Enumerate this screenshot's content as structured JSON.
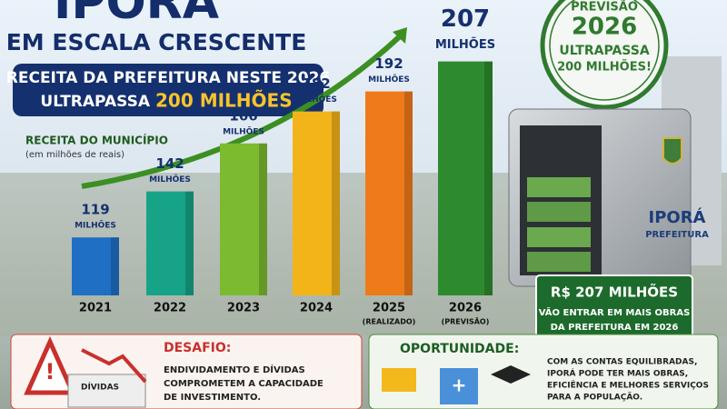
{
  "header": {
    "title": "IPORÁ",
    "subtitle": "EM ESCALA CRESCENTE",
    "banner_line1": "RECEITA DA PREFEITURA NESTE 2026",
    "banner_line2": "ULTRAPASSA",
    "banner_highlight": "200 MILHÕES"
  },
  "stamp": {
    "line1": "PREVISÃO",
    "year": "2026",
    "line2": "ULTRAPASSA",
    "line3": "200 MILHÕES!"
  },
  "safe": {
    "name": "IPORÁ",
    "label": "PREFEITURA"
  },
  "sign": {
    "title": "R$ 207 MILHÕES",
    "lines": [
      "VÃO ENTRAR EM MAIS OBRAS",
      "DA PREFEITURA EM 2026"
    ]
  },
  "chart_data": {
    "type": "bar",
    "title": "RECEITA DO MUNICÍPIO",
    "subtitle": "(em milhões de reais)",
    "categories": [
      "2021",
      "2022",
      "2023",
      "2024",
      "2025",
      "2026"
    ],
    "category_notes": [
      null,
      null,
      null,
      null,
      "(REALIZADO)",
      "(PREVISÃO)"
    ],
    "values": [
      119,
      142,
      166,
      182,
      192,
      207
    ],
    "value_unit": "MILHÕES",
    "colors": [
      "#1f6fc4",
      "#17a388",
      "#7cba2f",
      "#f3b41a",
      "#ef7a1a",
      "#2e8a2e"
    ],
    "ylim": [
      90,
      215
    ]
  },
  "challenge": {
    "title": "DESAFIO:",
    "lines": [
      "ENDIVIDAMENTO E DÍVIDAS",
      "COMPROMETEM A CAPACIDADE",
      "DE INVESTIMENTO."
    ],
    "icon_label": "DÍVIDAS"
  },
  "opportunity": {
    "title": "OPORTUNIDADE:",
    "lines": [
      "COM AS CONTAS EQUILIBRADAS,",
      "IPORÁ PODE TER MAIS OBRAS,",
      "EFICIÊNCIA E MELHORES SERVIÇOS",
      "PARA A POPULAÇÃO."
    ]
  }
}
